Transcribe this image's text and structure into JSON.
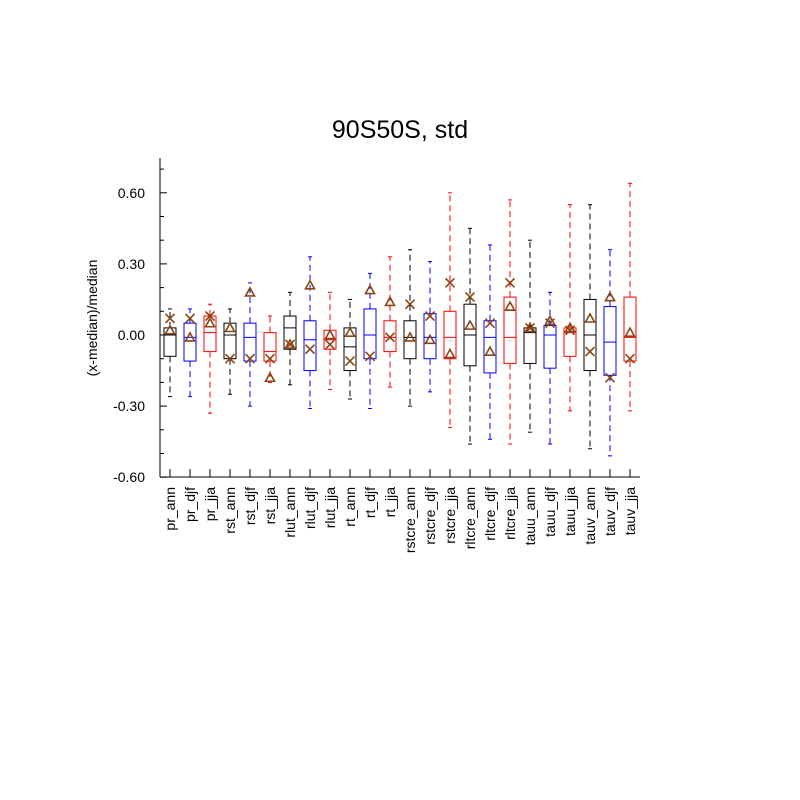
{
  "chart_data": {
    "type": "box",
    "title": "90S50S, std",
    "ylabel": "(x-median)/median",
    "xlabel": "",
    "ylim": [
      -0.62,
      0.74
    ],
    "yticks": [
      -0.6,
      -0.3,
      0.0,
      0.3,
      0.6
    ],
    "ytick_labels": [
      "-0.60",
      "-0.30",
      "0.00",
      "0.30",
      "0.60"
    ],
    "legend": {
      "cross_marker": "x",
      "triangle_marker": "triangle"
    },
    "colors": {
      "ann": "#000000",
      "djf": "#0000ff",
      "jja": "#ff0000",
      "marker": "#8b4513"
    },
    "boxes": [
      {
        "name": "pr_ann",
        "color": "ann",
        "whisker_low": -0.26,
        "q1": -0.09,
        "median": 0.0,
        "q3": 0.03,
        "whisker_high": 0.11,
        "cross": 0.07,
        "triangle": 0.02
      },
      {
        "name": "pr_djf",
        "color": "djf",
        "whisker_low": -0.26,
        "q1": -0.11,
        "median": -0.01,
        "q3": 0.05,
        "whisker_high": 0.11,
        "cross": 0.07,
        "triangle": -0.01
      },
      {
        "name": "pr_jja",
        "color": "jja",
        "whisker_low": -0.33,
        "q1": -0.07,
        "median": 0.01,
        "q3": 0.08,
        "whisker_high": 0.13,
        "cross": 0.08,
        "triangle": 0.05
      },
      {
        "name": "rst_ann",
        "color": "ann",
        "whisker_low": -0.25,
        "q1": -0.1,
        "median": 0.0,
        "q3": 0.05,
        "whisker_high": 0.11,
        "cross": -0.1,
        "triangle": 0.03
      },
      {
        "name": "rst_djf",
        "color": "djf",
        "whisker_low": -0.3,
        "q1": -0.11,
        "median": -0.01,
        "q3": 0.05,
        "whisker_high": 0.22,
        "cross": -0.1,
        "triangle": 0.18
      },
      {
        "name": "rst_jja",
        "color": "jja",
        "whisker_low": -0.2,
        "q1": -0.11,
        "median": -0.07,
        "q3": 0.01,
        "whisker_high": 0.08,
        "cross": -0.1,
        "triangle": -0.18
      },
      {
        "name": "rlut_ann",
        "color": "ann",
        "whisker_low": -0.21,
        "q1": -0.06,
        "median": 0.03,
        "q3": 0.08,
        "whisker_high": 0.18,
        "cross": -0.04,
        "triangle": -0.04
      },
      {
        "name": "rlut_djf",
        "color": "djf",
        "whisker_low": -0.31,
        "q1": -0.15,
        "median": -0.02,
        "q3": 0.06,
        "whisker_high": 0.33,
        "cross": -0.06,
        "triangle": 0.21
      },
      {
        "name": "rlut_jja",
        "color": "jja",
        "whisker_low": -0.23,
        "q1": -0.06,
        "median": -0.02,
        "q3": 0.02,
        "whisker_high": 0.18,
        "cross": -0.04,
        "triangle": 0.0
      },
      {
        "name": "rt_ann",
        "color": "ann",
        "whisker_low": -0.27,
        "q1": -0.15,
        "median": -0.05,
        "q3": 0.03,
        "whisker_high": 0.15,
        "cross": -0.11,
        "triangle": 0.01
      },
      {
        "name": "rt_djf",
        "color": "djf",
        "whisker_low": -0.31,
        "q1": -0.1,
        "median": 0.0,
        "q3": 0.11,
        "whisker_high": 0.26,
        "cross": -0.09,
        "triangle": 0.19
      },
      {
        "name": "rt_jja",
        "color": "jja",
        "whisker_low": -0.22,
        "q1": -0.07,
        "median": -0.01,
        "q3": 0.06,
        "whisker_high": 0.33,
        "cross": -0.01,
        "triangle": 0.14
      },
      {
        "name": "rstcre_ann",
        "color": "ann",
        "whisker_low": -0.3,
        "q1": -0.1,
        "median": -0.01,
        "q3": 0.06,
        "whisker_high": 0.36,
        "cross": 0.13,
        "triangle": -0.01
      },
      {
        "name": "rstcre_djf",
        "color": "djf",
        "whisker_low": -0.24,
        "q1": -0.1,
        "median": -0.01,
        "q3": 0.09,
        "whisker_high": 0.31,
        "cross": 0.08,
        "triangle": -0.02
      },
      {
        "name": "rstcre_jja",
        "color": "jja",
        "whisker_low": -0.39,
        "q1": -0.1,
        "median": -0.01,
        "q3": 0.1,
        "whisker_high": 0.6,
        "cross": 0.22,
        "triangle": -0.08
      },
      {
        "name": "rltcre_ann",
        "color": "ann",
        "whisker_low": -0.46,
        "q1": -0.13,
        "median": 0.0,
        "q3": 0.13,
        "whisker_high": 0.45,
        "cross": 0.16,
        "triangle": 0.04
      },
      {
        "name": "rltcre_djf",
        "color": "djf",
        "whisker_low": -0.44,
        "q1": -0.16,
        "median": -0.01,
        "q3": 0.06,
        "whisker_high": 0.38,
        "cross": 0.05,
        "triangle": -0.07
      },
      {
        "name": "rltcre_jja",
        "color": "jja",
        "whisker_low": -0.46,
        "q1": -0.12,
        "median": -0.01,
        "q3": 0.16,
        "whisker_high": 0.57,
        "cross": 0.22,
        "triangle": 0.12
      },
      {
        "name": "tauu_ann",
        "color": "ann",
        "whisker_low": -0.41,
        "q1": -0.12,
        "median": 0.01,
        "q3": 0.03,
        "whisker_high": 0.4,
        "cross": 0.03,
        "triangle": 0.03
      },
      {
        "name": "tauu_djf",
        "color": "djf",
        "whisker_low": -0.46,
        "q1": -0.14,
        "median": 0.0,
        "q3": 0.04,
        "whisker_high": 0.18,
        "cross": 0.05,
        "triangle": 0.06
      },
      {
        "name": "tauu_jja",
        "color": "jja",
        "whisker_low": -0.32,
        "q1": -0.09,
        "median": 0.01,
        "q3": 0.03,
        "whisker_high": 0.55,
        "cross": 0.02,
        "triangle": 0.03
      },
      {
        "name": "tauv_ann",
        "color": "ann",
        "whisker_low": -0.48,
        "q1": -0.15,
        "median": 0.0,
        "q3": 0.15,
        "whisker_high": 0.55,
        "cross": -0.07,
        "triangle": 0.07
      },
      {
        "name": "tauv_djf",
        "color": "djf",
        "whisker_low": -0.51,
        "q1": -0.17,
        "median": -0.03,
        "q3": 0.12,
        "whisker_high": 0.36,
        "cross": -0.18,
        "triangle": 0.16
      },
      {
        "name": "tauv_jja",
        "color": "jja",
        "whisker_low": -0.32,
        "q1": -0.11,
        "median": -0.01,
        "q3": 0.16,
        "whisker_high": 0.64,
        "cross": -0.1,
        "triangle": 0.01
      }
    ]
  }
}
